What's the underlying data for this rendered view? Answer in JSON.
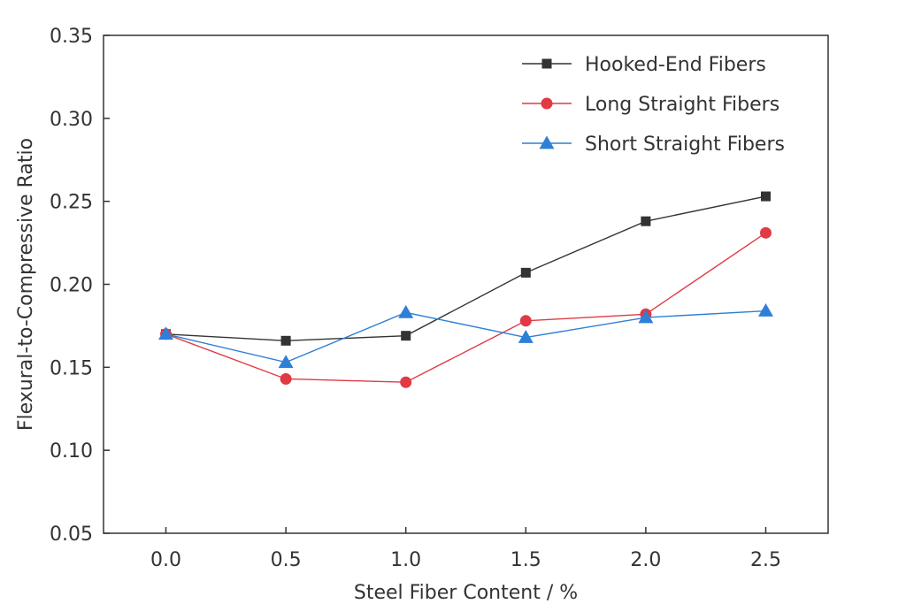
{
  "chart_data": {
    "type": "line",
    "title": "",
    "xlabel": "Steel Fiber Content / %",
    "ylabel": "Flexural-to-Compressive Ratio",
    "x": [
      0.0,
      0.5,
      1.0,
      1.5,
      2.0,
      2.5
    ],
    "x_tick_labels": [
      "0.0",
      "0.5",
      "1.0",
      "1.5",
      "2.0",
      "2.5"
    ],
    "y_ticks": [
      0.05,
      0.1,
      0.15,
      0.2,
      0.25,
      0.3,
      0.35
    ],
    "y_tick_labels": [
      "0.05",
      "0.10",
      "0.15",
      "0.20",
      "0.25",
      "0.30",
      "0.35"
    ],
    "xlim": [
      -0.26,
      2.76
    ],
    "ylim": [
      0.05,
      0.35
    ],
    "grid": false,
    "legend_position": "top-right",
    "series": [
      {
        "name": "Hooked-End Fibers",
        "color": "#333333",
        "marker": "square",
        "values": [
          0.17,
          0.166,
          0.169,
          0.207,
          0.238,
          0.253
        ]
      },
      {
        "name": "Long Straight Fibers",
        "color": "#e03a45",
        "marker": "circle",
        "values": [
          0.17,
          0.143,
          0.141,
          0.178,
          0.182,
          0.231
        ]
      },
      {
        "name": "Short Straight Fibers",
        "color": "#2e7fd6",
        "marker": "triangle",
        "values": [
          0.17,
          0.153,
          0.183,
          0.168,
          0.18,
          0.184
        ]
      }
    ]
  }
}
